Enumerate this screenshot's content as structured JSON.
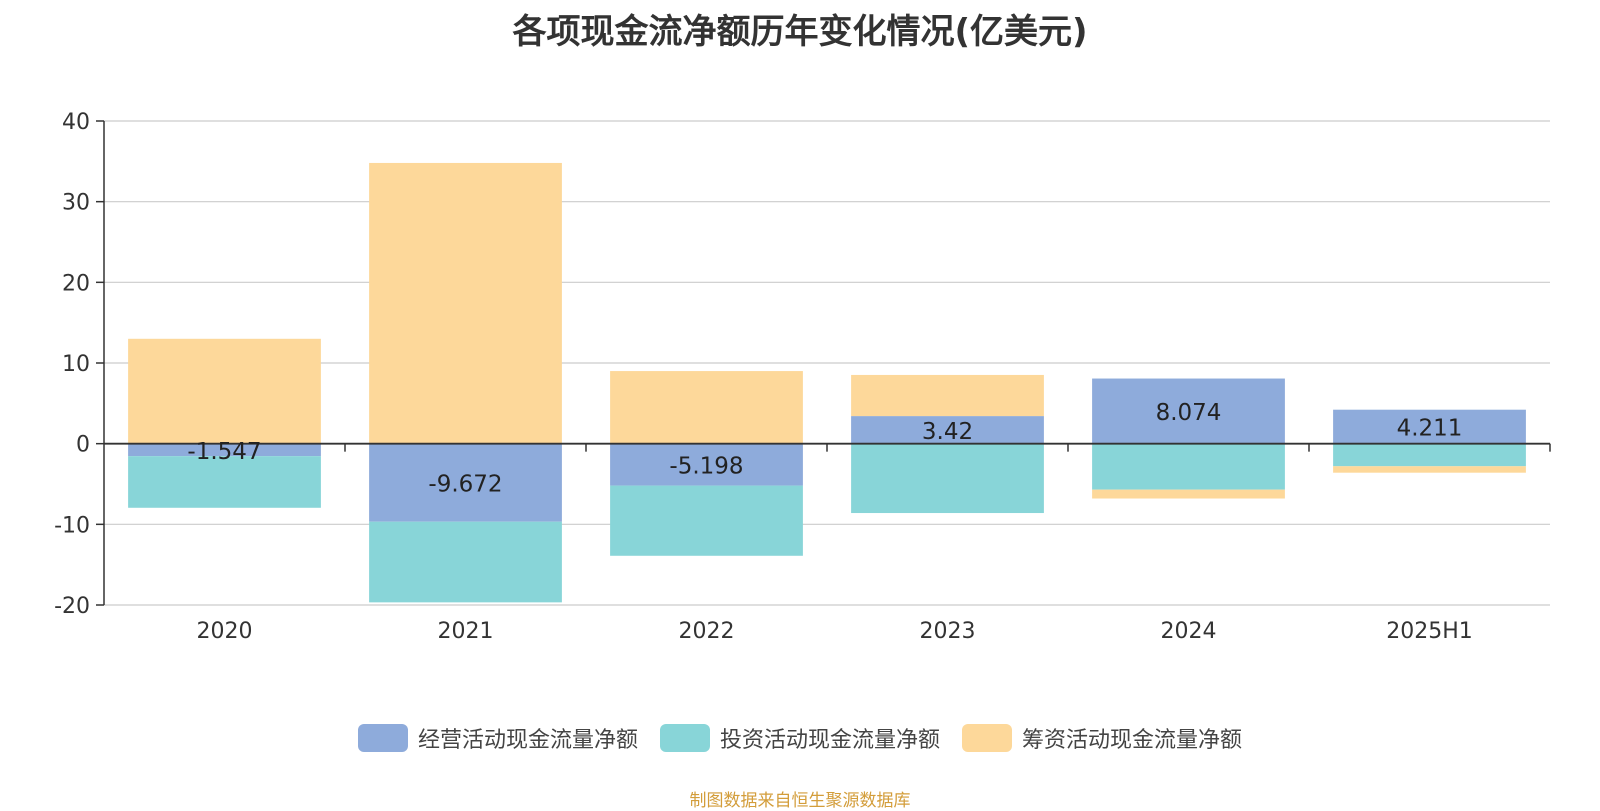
{
  "chart_data": {
    "type": "bar",
    "stacked": true,
    "title": "各项现金流净额历年变化情况(亿美元)",
    "categories": [
      "2020",
      "2021",
      "2022",
      "2023",
      "2024",
      "2025H1"
    ],
    "series": [
      {
        "name": "经营活动现金流量净额",
        "color": "#8eabdb",
        "values": [
          -1.547,
          -9.672,
          -5.198,
          3.42,
          8.074,
          4.211
        ],
        "labels": [
          "-1.547",
          "-9.672",
          "-5.198",
          "3.42",
          "8.074",
          "4.211"
        ]
      },
      {
        "name": "投资活动现金流量净额",
        "color": "#88d5d8",
        "values": [
          -6.4,
          -10.0,
          -8.7,
          -8.6,
          -5.7,
          -2.8
        ]
      },
      {
        "name": "筹资活动现金流量净额",
        "color": "#fdd89a",
        "values": [
          13.0,
          34.8,
          9.0,
          5.1,
          -1.1,
          -0.8
        ]
      }
    ],
    "ylim": [
      -20,
      40
    ],
    "yticks": [
      "-20",
      "-10",
      "0",
      "10",
      "20",
      "30",
      "40"
    ],
    "grid": true,
    "legend_position": "bottom"
  },
  "source_note": "制图数据来自恒生聚源数据库"
}
